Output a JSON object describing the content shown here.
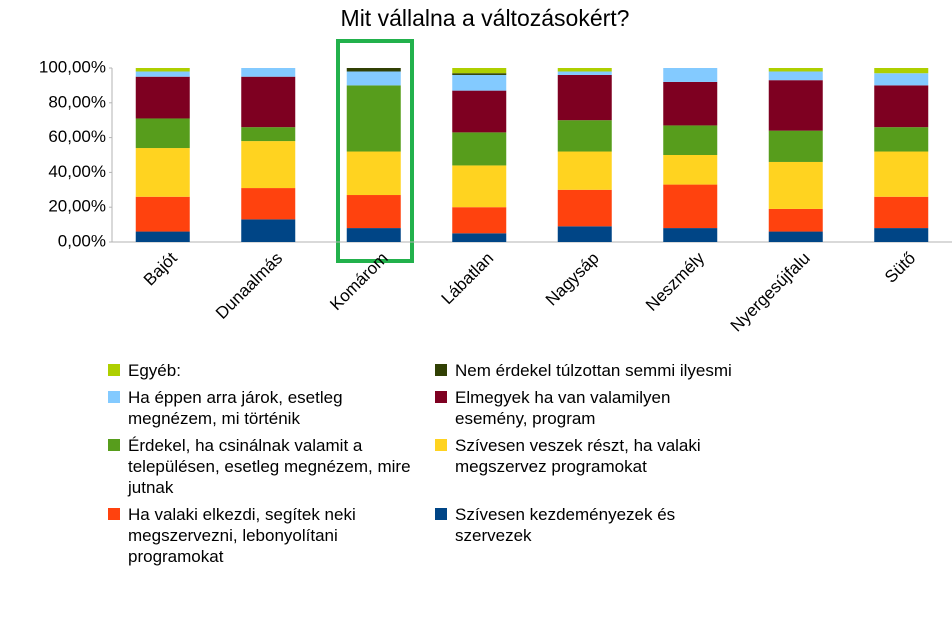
{
  "chart_data": {
    "type": "stacked_bar",
    "title": "Mit vállalna a változásokért?",
    "categories": [
      "Bajót",
      "Dunaalmás",
      "Komárom",
      "Lábatlan",
      "Nagysáp",
      "Neszmély",
      "Nyergesújfalu",
      "Sütő"
    ],
    "ylim": [
      0,
      100
    ],
    "yticks": [
      {
        "value": 0,
        "label": "0,00%"
      },
      {
        "value": 20,
        "label": "20,00%"
      },
      {
        "value": 40,
        "label": "40,00%"
      },
      {
        "value": 60,
        "label": "60,00%"
      },
      {
        "value": 80,
        "label": "80,00%"
      },
      {
        "value": 100,
        "label": "100,00%"
      }
    ],
    "series": [
      {
        "name": "Szívesen kezdeményezek és szervezek",
        "color": "#004586",
        "values": [
          6,
          13,
          8,
          5,
          9,
          8,
          6,
          8
        ]
      },
      {
        "name": "Ha valaki elkezdi, segítek neki megszervezni, lebonyolítani programokat",
        "color": "#ff420e",
        "values": [
          20,
          18,
          19,
          15,
          21,
          25,
          13,
          18
        ]
      },
      {
        "name": "Szívesen veszek részt, ha valaki megszervez programokat",
        "color": "#ffd320",
        "values": [
          28,
          27,
          25,
          24,
          22,
          17,
          27,
          26
        ]
      },
      {
        "name": "Érdekel, ha csinálnak valamit a településen, esetleg megnézem, mire jutnak",
        "color": "#579d1c",
        "values": [
          17,
          8,
          38,
          19,
          18,
          17,
          18,
          14
        ]
      },
      {
        "name": "Elmegyek ha van valamilyen esemény, program",
        "color": "#7e0021",
        "values": [
          24,
          29,
          0,
          24,
          26,
          25,
          29,
          24
        ]
      },
      {
        "name": "Ha éppen arra járok, esetleg megnézem, mi történik",
        "color": "#83caff",
        "values": [
          3,
          5,
          8,
          9,
          2,
          8,
          5,
          7
        ]
      },
      {
        "name": "Nem érdekel túlzottan semmi ilyesmi",
        "color": "#314004",
        "values": [
          0,
          0,
          2,
          1,
          0,
          0,
          0,
          0
        ]
      },
      {
        "name": "Egyéb:",
        "color": "#aecf00",
        "values": [
          2,
          0,
          0,
          3,
          2,
          0,
          2,
          3
        ]
      }
    ]
  }
}
